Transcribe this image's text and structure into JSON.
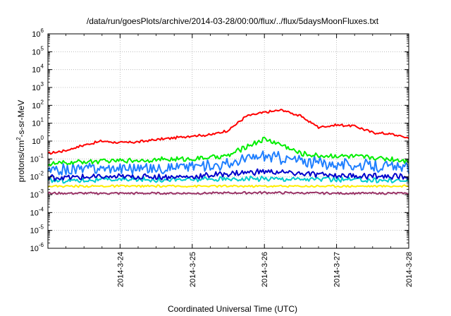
{
  "chart_data": {
    "type": "line",
    "title": "/data/run/goesPlots/archive/2014-03-28/00:00/flux/../flux/5daysMoonFluxes.txt",
    "xlabel": "Coordinated Universal Time (UTC)",
    "ylabel_parts": [
      "protons/cm",
      "2",
      "-s-sr-MeV"
    ],
    "x_range": [
      "2014-03-23T00:00",
      "2014-03-28T00:00"
    ],
    "x_ticks": [
      "2014-3-24",
      "2014-3-25",
      "2014-3-26",
      "2014-3-27",
      "2014-3-28"
    ],
    "yscale": "log",
    "ylim": [
      1e-06,
      1000000.0
    ],
    "y_ticks": [
      {
        "base": "10",
        "exp": "-6"
      },
      {
        "base": "10",
        "exp": "-5"
      },
      {
        "base": "10",
        "exp": "-4"
      },
      {
        "base": "10",
        "exp": "-3"
      },
      {
        "base": "10",
        "exp": "-2"
      },
      {
        "base": "10",
        "exp": "-1"
      },
      {
        "base": "10",
        "exp": "0"
      },
      {
        "base": "10",
        "exp": "1"
      },
      {
        "base": "10",
        "exp": "2"
      },
      {
        "base": "10",
        "exp": "3"
      },
      {
        "base": "10",
        "exp": "4"
      },
      {
        "base": "10",
        "exp": "5"
      },
      {
        "base": "10",
        "exp": "6"
      }
    ],
    "grid": true,
    "series": [
      {
        "color": "#ff0000",
        "x": [
          "2014-03-23T00:00",
          "2014-03-23T06:00",
          "2014-03-23T12:00",
          "2014-03-23T18:00",
          "2014-03-24T00:00",
          "2014-03-24T06:00",
          "2014-03-24T12:00",
          "2014-03-24T18:00",
          "2014-03-25T00:00",
          "2014-03-25T06:00",
          "2014-03-25T12:00",
          "2014-03-25T18:00",
          "2014-03-26T00:00",
          "2014-03-26T06:00",
          "2014-03-26T12:00",
          "2014-03-26T18:00",
          "2014-03-27T00:00",
          "2014-03-27T06:00",
          "2014-03-27T12:00",
          "2014-03-27T18:00",
          "2014-03-28T00:00"
        ],
        "y": [
          0.2,
          0.3,
          0.6,
          1.0,
          0.8,
          0.9,
          1.2,
          1.5,
          2.0,
          2.2,
          4.0,
          25,
          40,
          55,
          25,
          6,
          8,
          7,
          3,
          2.5,
          1.5
        ]
      },
      {
        "color": "#00ee00",
        "x": [
          "2014-03-23T00:00",
          "2014-03-23T12:00",
          "2014-03-24T00:00",
          "2014-03-24T12:00",
          "2014-03-25T00:00",
          "2014-03-25T12:00",
          "2014-03-25T18:00",
          "2014-03-26T00:00",
          "2014-03-26T06:00",
          "2014-03-26T12:00",
          "2014-03-26T18:00",
          "2014-03-27T00:00",
          "2014-03-27T12:00",
          "2014-03-28T00:00"
        ],
        "y": [
          0.05,
          0.07,
          0.08,
          0.09,
          0.1,
          0.15,
          0.5,
          1.3,
          0.6,
          0.2,
          0.15,
          0.15,
          0.12,
          0.08
        ]
      },
      {
        "color": "#1f7fff",
        "x": [
          "2014-03-23T00:00",
          "2014-03-23T12:00",
          "2014-03-24T00:00",
          "2014-03-24T12:00",
          "2014-03-25T00:00",
          "2014-03-25T12:00",
          "2014-03-25T18:00",
          "2014-03-26T00:00",
          "2014-03-26T12:00",
          "2014-03-27T00:00",
          "2014-03-27T12:00",
          "2014-03-28T00:00"
        ],
        "y": [
          0.02,
          0.03,
          0.03,
          0.03,
          0.04,
          0.05,
          0.1,
          0.15,
          0.08,
          0.05,
          0.04,
          0.03
        ]
      },
      {
        "color": "#0000cc",
        "x": [
          "2014-03-23T00:00",
          "2014-03-24T00:00",
          "2014-03-25T00:00",
          "2014-03-25T12:00",
          "2014-03-26T00:00",
          "2014-03-26T12:00",
          "2014-03-27T00:00",
          "2014-03-28T00:00"
        ],
        "y": [
          0.009,
          0.01,
          0.01,
          0.015,
          0.02,
          0.015,
          0.012,
          0.01
        ]
      },
      {
        "color": "#00cccc",
        "x": [
          "2014-03-23T00:00",
          "2014-03-24T00:00",
          "2014-03-25T00:00",
          "2014-03-26T00:00",
          "2014-03-27T00:00",
          "2014-03-28T00:00"
        ],
        "y": [
          0.006,
          0.007,
          0.007,
          0.008,
          0.007,
          0.006
        ]
      },
      {
        "color": "#ffee00",
        "x": [
          "2014-03-23T00:00",
          "2014-03-24T00:00",
          "2014-03-25T00:00",
          "2014-03-26T00:00",
          "2014-03-27T00:00",
          "2014-03-28T00:00"
        ],
        "y": [
          0.003,
          0.003,
          0.003,
          0.003,
          0.003,
          0.003
        ]
      },
      {
        "color": "#993366",
        "x": [
          "2014-03-23T00:00",
          "2014-03-24T00:00",
          "2014-03-25T00:00",
          "2014-03-26T00:00",
          "2014-03-27T00:00",
          "2014-03-28T00:00"
        ],
        "y": [
          0.0012,
          0.0012,
          0.0012,
          0.0013,
          0.0012,
          0.0012
        ]
      }
    ]
  }
}
